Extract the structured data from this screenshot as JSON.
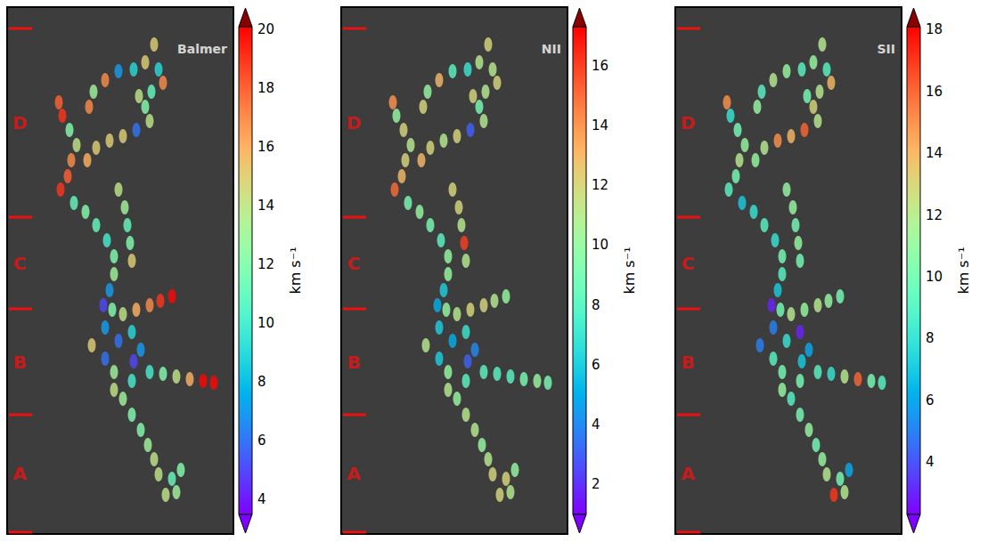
{
  "chart_data": [
    {
      "type": "scatter",
      "title": "Balmer",
      "tick_labels": false,
      "xlim": [
        0,
        254
      ],
      "ylim": [
        0,
        592
      ],
      "x": [
        165,
        155,
        142,
        125,
        110,
        97,
        92,
        58,
        62,
        70,
        78,
        72,
        68,
        60,
        90,
        100,
        115,
        130,
        145,
        160,
        155,
        148,
        162,
        175,
        170,
        75,
        88,
        100,
        112,
        120,
        125,
        132,
        135,
        138,
        140,
        120,
        115,
        108,
        118,
        130,
        145,
        160,
        172,
        185,
        110,
        125,
        140,
        150,
        142,
        95,
        110,
        120,
        160,
        175,
        190,
        205,
        220,
        232,
        140,
        130,
        140,
        150,
        158,
        165,
        170,
        185,
        190,
        178,
        195,
        120
      ],
      "y": [
        42,
        62,
        70,
        72,
        82,
        95,
        112,
        107,
        122,
        138,
        155,
        172,
        190,
        205,
        172,
        158,
        150,
        145,
        138,
        128,
        112,
        100,
        95,
        85,
        70,
        220,
        230,
        245,
        262,
        280,
        205,
        225,
        245,
        265,
        285,
        300,
        318,
        335,
        340,
        345,
        340,
        335,
        330,
        325,
        360,
        375,
        365,
        385,
        398,
        380,
        395,
        410,
        410,
        412,
        415,
        418,
        420,
        422,
        420,
        440,
        458,
        475,
        492,
        508,
        525,
        530,
        545,
        548,
        520,
        430
      ],
      "values": [
        15,
        15,
        9,
        7,
        17,
        13,
        17,
        18,
        19,
        12,
        14,
        17,
        18,
        19,
        16,
        15,
        15,
        15,
        6,
        14,
        12,
        14,
        11,
        17,
        9,
        11,
        12,
        11,
        10,
        12,
        14,
        13,
        11,
        12,
        15,
        13,
        7,
        5,
        12,
        14,
        16,
        17,
        19,
        20,
        7,
        6,
        9,
        7,
        5,
        15,
        6,
        13,
        10,
        12,
        14,
        16,
        20,
        20,
        10,
        13,
        12,
        12,
        13,
        14,
        14,
        11,
        13,
        14,
        12,
        14
      ],
      "colorbar": {
        "label": "km s⁻¹",
        "range": [
          3.5,
          20.1
        ],
        "ticks": [
          4,
          6,
          8,
          10,
          12,
          14,
          16,
          18,
          20
        ]
      },
      "regions": {
        "labels": [
          "D",
          "C",
          "B",
          "A"
        ],
        "bounds": [
          24,
          236,
          339,
          458,
          590
        ]
      }
    },
    {
      "type": "scatter",
      "title": "NII",
      "tick_labels": false,
      "xlim": [
        0,
        254
      ],
      "ylim": [
        0,
        592
      ],
      "x": [
        165,
        155,
        142,
        125,
        110,
        97,
        92,
        58,
        62,
        70,
        78,
        72,
        68,
        60,
        90,
        100,
        115,
        130,
        145,
        160,
        155,
        148,
        162,
        175,
        170,
        75,
        88,
        100,
        112,
        120,
        125,
        132,
        135,
        138,
        140,
        120,
        115,
        108,
        118,
        130,
        145,
        160,
        172,
        185,
        110,
        125,
        140,
        150,
        142,
        95,
        110,
        120,
        160,
        175,
        190,
        205,
        220,
        232,
        140,
        130,
        140,
        150,
        158,
        165,
        170,
        185,
        190,
        178,
        195,
        120
      ],
      "y": [
        42,
        62,
        70,
        72,
        82,
        95,
        112,
        107,
        122,
        138,
        155,
        172,
        190,
        205,
        172,
        158,
        150,
        145,
        138,
        128,
        112,
        100,
        95,
        85,
        70,
        220,
        230,
        245,
        262,
        280,
        205,
        225,
        245,
        265,
        285,
        300,
        318,
        335,
        340,
        345,
        340,
        335,
        330,
        325,
        360,
        375,
        365,
        385,
        398,
        380,
        395,
        410,
        410,
        412,
        415,
        418,
        420,
        422,
        420,
        440,
        458,
        475,
        492,
        508,
        525,
        530,
        545,
        548,
        520,
        430
      ],
      "values": [
        12,
        11,
        7,
        8,
        13,
        10,
        12,
        14,
        10,
        12,
        11,
        12,
        13,
        15,
        13,
        12,
        11,
        12,
        3,
        11,
        9,
        12,
        11,
        12,
        11,
        9,
        10,
        9,
        8,
        10,
        12,
        12,
        11,
        16,
        11,
        10,
        6,
        5,
        10,
        11,
        12,
        12,
        11,
        10,
        6,
        5,
        7,
        4,
        3,
        11,
        6,
        10,
        8,
        8,
        8,
        9,
        10,
        9,
        8,
        10,
        11,
        11,
        10,
        11,
        12,
        12,
        11,
        12,
        10,
        11
      ],
      "colorbar": {
        "label": "km s⁻¹",
        "range": [
          1.0,
          17.3
        ],
        "ticks": [
          2,
          4,
          6,
          8,
          10,
          12,
          14,
          16
        ]
      },
      "regions": {
        "labels": [
          "D",
          "C",
          "B",
          "A"
        ],
        "bounds": [
          24,
          236,
          339,
          458,
          590
        ]
      }
    },
    {
      "type": "scatter",
      "title": "SII",
      "tick_labels": false,
      "xlim": [
        0,
        254
      ],
      "ylim": [
        0,
        592
      ],
      "x": [
        165,
        155,
        142,
        125,
        110,
        97,
        92,
        58,
        62,
        70,
        78,
        72,
        68,
        60,
        90,
        100,
        115,
        130,
        145,
        160,
        155,
        148,
        162,
        175,
        170,
        75,
        88,
        100,
        112,
        120,
        125,
        132,
        135,
        138,
        140,
        120,
        115,
        108,
        118,
        130,
        145,
        160,
        172,
        185,
        110,
        125,
        140,
        150,
        142,
        95,
        110,
        120,
        160,
        175,
        190,
        205,
        220,
        232,
        140,
        130,
        140,
        150,
        158,
        165,
        170,
        185,
        190,
        178,
        195,
        120
      ],
      "y": [
        42,
        62,
        70,
        72,
        82,
        95,
        112,
        107,
        122,
        138,
        155,
        172,
        190,
        205,
        172,
        158,
        150,
        145,
        138,
        128,
        112,
        100,
        95,
        85,
        70,
        220,
        230,
        245,
        262,
        280,
        205,
        225,
        245,
        265,
        285,
        300,
        318,
        335,
        340,
        345,
        340,
        335,
        330,
        325,
        360,
        375,
        365,
        385,
        398,
        380,
        395,
        410,
        410,
        412,
        415,
        418,
        420,
        422,
        420,
        440,
        458,
        475,
        492,
        508,
        525,
        530,
        545,
        548,
        520,
        430
      ],
      "values": [
        12,
        11,
        9,
        11,
        12,
        9,
        11,
        15,
        8,
        10,
        11,
        12,
        10,
        9,
        11,
        12,
        15,
        14,
        16,
        12,
        13,
        10,
        12,
        14,
        9,
        7,
        8,
        9,
        8,
        10,
        11,
        11,
        10,
        11,
        10,
        9,
        7,
        3,
        10,
        12,
        11,
        12,
        11,
        10,
        5,
        8,
        3,
        6,
        7,
        5,
        9,
        10,
        9,
        8,
        12,
        16,
        10,
        9,
        10,
        9,
        10,
        11,
        10,
        11,
        12,
        10,
        12,
        17,
        6,
        11
      ],
      "colorbar": {
        "label": "km s⁻¹",
        "range": [
          2.3,
          18.1
        ],
        "ticks": [
          4,
          6,
          8,
          10,
          12,
          14,
          16,
          18
        ]
      },
      "regions": {
        "labels": [
          "D",
          "C",
          "B",
          "A"
        ],
        "bounds": [
          24,
          236,
          339,
          458,
          590
        ]
      }
    }
  ]
}
